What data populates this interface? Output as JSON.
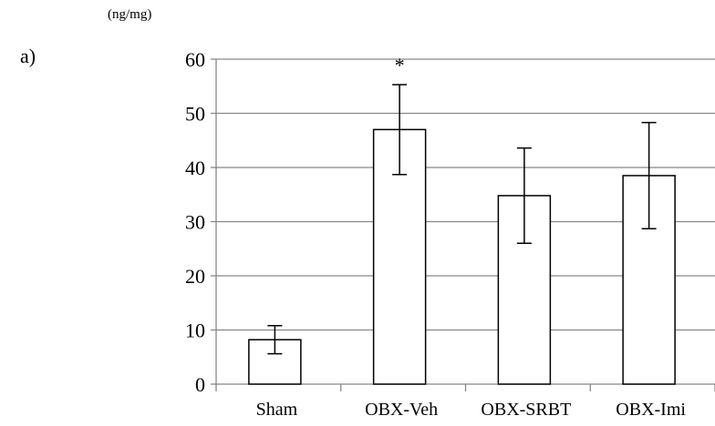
{
  "panel_label": "a)",
  "chart_data": {
    "type": "bar",
    "title": "",
    "ylabel": "(ng/mg)",
    "xlabel": "",
    "categories": [
      "Sham",
      "OBX-Veh",
      "OBX-SRBT",
      "OBX-Imi"
    ],
    "values": [
      8.2,
      47.0,
      34.8,
      38.5
    ],
    "errors": [
      2.6,
      8.3,
      8.8,
      9.8
    ],
    "annotations": [
      "",
      "*",
      "",
      ""
    ],
    "ylim": [
      0,
      60
    ],
    "yticks": [
      0,
      10,
      20,
      30,
      40,
      50,
      60
    ],
    "grid": true,
    "bar_fill": "#ffffff",
    "bar_stroke": "#000000",
    "grid_color": "#878787",
    "axis_color": "#878787"
  }
}
